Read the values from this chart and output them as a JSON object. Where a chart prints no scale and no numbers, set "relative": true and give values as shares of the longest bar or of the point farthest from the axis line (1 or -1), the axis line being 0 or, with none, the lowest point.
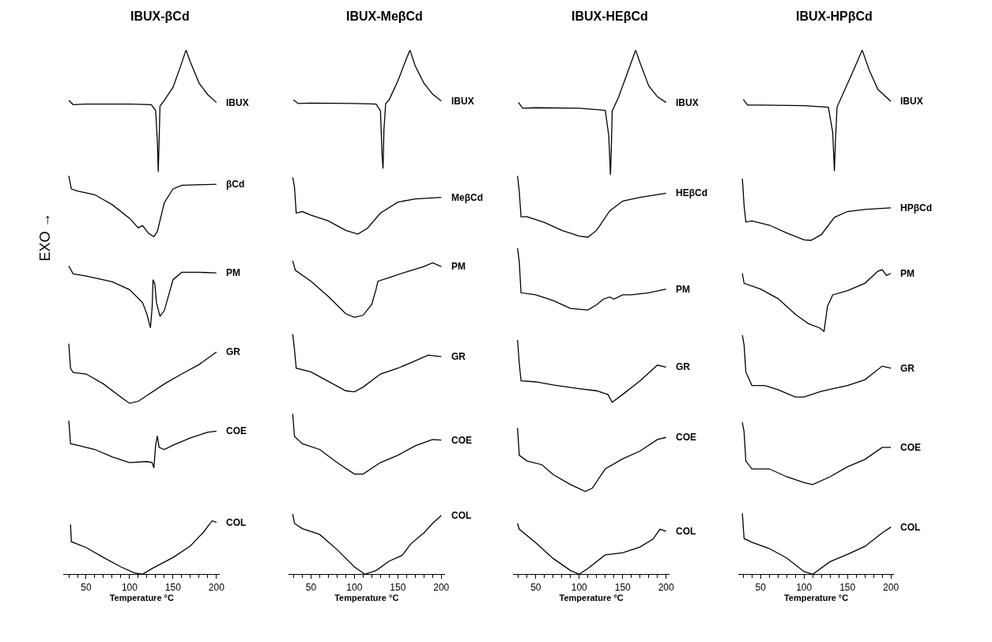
{
  "chart_data": [
    {
      "type": "line",
      "title": "IBUX-βCd",
      "xlabel": "Temperature °C",
      "ylabel": "EXO →",
      "relative": true,
      "xlim": [
        24,
        204
      ],
      "xticks": [
        {
          "value": 30,
          "label": null
        },
        {
          "value": 40,
          "label": null
        },
        50,
        {
          "value": 60,
          "label": null
        },
        {
          "value": 70,
          "label": null
        },
        {
          "value": 80,
          "label": null
        },
        {
          "value": 90,
          "label": null
        },
        100,
        {
          "value": 110,
          "label": null
        },
        {
          "value": 120,
          "label": null
        },
        {
          "value": 130,
          "label": null
        },
        {
          "value": 140,
          "label": null
        },
        150,
        {
          "value": 160,
          "label": null
        },
        {
          "value": 170,
          "label": null
        },
        {
          "value": 180,
          "label": null
        },
        {
          "value": 190,
          "label": null
        },
        200
      ],
      "legend": false,
      "marker": "none",
      "line_style": "solid",
      "series": [
        {
          "name": "IBUX",
          "color": "#000000",
          "x": [
            30,
            35,
            50,
            100,
            125,
            130,
            132,
            133,
            134,
            135,
            140,
            150,
            158,
            165,
            170,
            180,
            190,
            200
          ],
          "values": [
            0.904,
            0.896,
            0.897,
            0.897,
            0.896,
            0.885,
            0.826,
            0.768,
            0.826,
            0.893,
            0.904,
            0.929,
            0.966,
            1.0,
            0.977,
            0.937,
            0.915,
            0.9
          ]
        },
        {
          "name": "βCd",
          "color": "#000000",
          "x": [
            30,
            33,
            40,
            60,
            80,
            100,
            110,
            115,
            122,
            128,
            132,
            140,
            150,
            160,
            180,
            200
          ],
          "values": [
            0.76,
            0.735,
            0.731,
            0.724,
            0.705,
            0.679,
            0.661,
            0.665,
            0.65,
            0.644,
            0.654,
            0.709,
            0.735,
            0.742,
            0.743,
            0.744
          ]
        },
        {
          "name": "PM",
          "color": "#000000",
          "x": [
            30,
            35,
            50,
            80,
            100,
            115,
            120,
            124,
            126,
            127,
            129,
            131,
            135,
            140,
            150,
            160,
            180,
            200
          ],
          "values": [
            0.588,
            0.573,
            0.569,
            0.558,
            0.543,
            0.518,
            0.496,
            0.47,
            0.51,
            0.562,
            0.554,
            0.518,
            0.492,
            0.503,
            0.562,
            0.576,
            0.576,
            0.575
          ]
        },
        {
          "name": "GR",
          "color": "#000000",
          "x": [
            30,
            32,
            35,
            50,
            70,
            90,
            100,
            110,
            120,
            140,
            160,
            180,
            200
          ],
          "values": [
            0.44,
            0.393,
            0.385,
            0.382,
            0.363,
            0.338,
            0.326,
            0.33,
            0.341,
            0.363,
            0.382,
            0.4,
            0.424
          ]
        },
        {
          "name": "COE",
          "color": "#000000",
          "x": [
            30,
            32,
            40,
            60,
            80,
            100,
            120,
            126,
            128,
            130,
            132,
            134,
            140,
            150,
            170,
            190,
            200
          ],
          "values": [
            0.293,
            0.249,
            0.246,
            0.238,
            0.224,
            0.213,
            0.215,
            0.213,
            0.203,
            0.246,
            0.264,
            0.242,
            0.238,
            0.246,
            0.26,
            0.271,
            0.273
          ]
        },
        {
          "name": "COL",
          "color": "#000000",
          "x": [
            32,
            33,
            50,
            70,
            90,
            105,
            115,
            125,
            150,
            170,
            185,
            195,
            200
          ],
          "values": [
            0.095,
            0.062,
            0.051,
            0.032,
            0.014,
            0.003,
            0.0,
            0.01,
            0.032,
            0.054,
            0.08,
            0.102,
            0.099
          ]
        }
      ]
    },
    {
      "type": "line",
      "title": "IBUX-MeβCd",
      "xlabel": "Temperature °C",
      "relative": true,
      "xlim": [
        24,
        204
      ],
      "xticks": [
        {
          "value": 30,
          "label": null
        },
        {
          "value": 40,
          "label": null
        },
        50,
        {
          "value": 60,
          "label": null
        },
        {
          "value": 70,
          "label": null
        },
        {
          "value": 80,
          "label": null
        },
        {
          "value": 90,
          "label": null
        },
        100,
        {
          "value": 110,
          "label": null
        },
        {
          "value": 120,
          "label": null
        },
        {
          "value": 130,
          "label": null
        },
        {
          "value": 140,
          "label": null
        },
        150,
        {
          "value": 160,
          "label": null
        },
        {
          "value": 170,
          "label": null
        },
        {
          "value": 180,
          "label": null
        },
        {
          "value": 190,
          "label": null
        },
        200
      ],
      "legend": false,
      "marker": "none",
      "line_style": "solid",
      "series": [
        {
          "name": "IBUX",
          "color": "#000000",
          "x": [
            30,
            35,
            50,
            100,
            125,
            130,
            132,
            133,
            134,
            136,
            140,
            150,
            160,
            164,
            170,
            180,
            190,
            200
          ],
          "values": [
            0.905,
            0.898,
            0.899,
            0.898,
            0.897,
            0.884,
            0.796,
            0.774,
            0.847,
            0.898,
            0.905,
            0.941,
            0.984,
            1.0,
            0.97,
            0.937,
            0.916,
            0.903
          ]
        },
        {
          "name": "MeβCd",
          "color": "#000000",
          "x": [
            29,
            31,
            33,
            40,
            50,
            70,
            90,
            104,
            115,
            130,
            150,
            170,
            200
          ],
          "values": [
            0.757,
            0.739,
            0.689,
            0.692,
            0.685,
            0.674,
            0.656,
            0.649,
            0.66,
            0.689,
            0.71,
            0.716,
            0.719
          ]
        },
        {
          "name": "PM",
          "color": "#000000",
          "x": [
            29,
            32,
            50,
            70,
            90,
            100,
            110,
            120,
            125,
            127,
            140,
            160,
            180,
            190,
            200
          ],
          "values": [
            0.598,
            0.58,
            0.559,
            0.53,
            0.497,
            0.49,
            0.494,
            0.515,
            0.544,
            0.559,
            0.566,
            0.577,
            0.587,
            0.594,
            0.587
          ]
        },
        {
          "name": "GR",
          "color": "#000000",
          "x": [
            29,
            31,
            33,
            50,
            70,
            90,
            100,
            110,
            130,
            150,
            170,
            185,
            200
          ],
          "values": [
            0.458,
            0.429,
            0.393,
            0.386,
            0.368,
            0.35,
            0.348,
            0.357,
            0.382,
            0.393,
            0.407,
            0.418,
            0.415
          ]
        },
        {
          "name": "COE",
          "color": "#000000",
          "x": [
            29,
            31,
            40,
            60,
            80,
            100,
            110,
            130,
            150,
            170,
            190,
            200
          ],
          "values": [
            0.306,
            0.263,
            0.249,
            0.238,
            0.213,
            0.191,
            0.191,
            0.213,
            0.227,
            0.245,
            0.257,
            0.256
          ]
        },
        {
          "name": "COL",
          "color": "#000000",
          "x": [
            29,
            31,
            40,
            60,
            80,
            100,
            112,
            125,
            140,
            155,
            165,
            180,
            190,
            200
          ],
          "values": [
            0.115,
            0.097,
            0.087,
            0.076,
            0.047,
            0.014,
            0.0,
            0.007,
            0.025,
            0.036,
            0.058,
            0.079,
            0.097,
            0.112
          ]
        }
      ]
    },
    {
      "type": "line",
      "title": "IBUX-HEβCd",
      "xlabel": "Temperature °C",
      "relative": true,
      "xlim": [
        24,
        204
      ],
      "xticks": [
        {
          "value": 30,
          "label": null
        },
        {
          "value": 40,
          "label": null
        },
        50,
        {
          "value": 60,
          "label": null
        },
        {
          "value": 70,
          "label": null
        },
        {
          "value": 80,
          "label": null
        },
        {
          "value": 90,
          "label": null
        },
        100,
        {
          "value": 110,
          "label": null
        },
        {
          "value": 120,
          "label": null
        },
        {
          "value": 130,
          "label": null
        },
        {
          "value": 140,
          "label": null
        },
        150,
        {
          "value": 160,
          "label": null
        },
        {
          "value": 170,
          "label": null
        },
        {
          "value": 180,
          "label": null
        },
        {
          "value": 190,
          "label": null
        },
        200
      ],
      "legend": false,
      "marker": "none",
      "line_style": "solid",
      "series": [
        {
          "name": "IBUX",
          "color": "#000000",
          "x": [
            30,
            35,
            50,
            100,
            130,
            134,
            136,
            137,
            138,
            145,
            155,
            165,
            170,
            180,
            190,
            200
          ],
          "values": [
            0.9,
            0.889,
            0.89,
            0.889,
            0.885,
            0.837,
            0.762,
            0.815,
            0.884,
            0.909,
            0.954,
            1.0,
            0.976,
            0.932,
            0.911,
            0.9
          ]
        },
        {
          "name": "HEβCd",
          "color": "#000000",
          "x": [
            29,
            31,
            33,
            40,
            60,
            80,
            100,
            110,
            120,
            135,
            150,
            170,
            200
          ],
          "values": [
            0.76,
            0.73,
            0.682,
            0.682,
            0.671,
            0.656,
            0.645,
            0.643,
            0.656,
            0.693,
            0.712,
            0.719,
            0.727
          ]
        },
        {
          "name": "PM",
          "color": "#000000",
          "x": [
            29,
            31,
            33,
            50,
            70,
            90,
            110,
            120,
            128,
            135,
            140,
            150,
            160,
            180,
            200
          ],
          "values": [
            0.622,
            0.596,
            0.537,
            0.533,
            0.522,
            0.507,
            0.504,
            0.514,
            0.525,
            0.529,
            0.525,
            0.533,
            0.533,
            0.537,
            0.544
          ]
        },
        {
          "name": "GR",
          "color": "#000000",
          "x": [
            29,
            31,
            33,
            50,
            70,
            100,
            120,
            133,
            138,
            150,
            170,
            190,
            200
          ],
          "values": [
            0.447,
            0.402,
            0.369,
            0.367,
            0.361,
            0.354,
            0.35,
            0.343,
            0.328,
            0.343,
            0.369,
            0.399,
            0.395
          ]
        },
        {
          "name": "COE",
          "color": "#000000",
          "x": [
            29,
            31,
            40,
            57,
            70,
            90,
            107,
            115,
            130,
            150,
            170,
            190,
            200
          ],
          "values": [
            0.279,
            0.227,
            0.216,
            0.209,
            0.19,
            0.171,
            0.158,
            0.164,
            0.201,
            0.22,
            0.235,
            0.257,
            0.261
          ]
        },
        {
          "name": "COL",
          "color": "#000000",
          "x": [
            29,
            31,
            50,
            70,
            90,
            100,
            110,
            130,
            150,
            170,
            185,
            193,
            200
          ],
          "values": [
            0.097,
            0.086,
            0.06,
            0.03,
            0.007,
            0.0,
            0.011,
            0.037,
            0.041,
            0.052,
            0.067,
            0.086,
            0.082
          ]
        }
      ]
    },
    {
      "type": "line",
      "title": "IBUX-HPβCd",
      "xlabel": "Temperature °C",
      "relative": true,
      "xlim": [
        24,
        204
      ],
      "xticks": [
        {
          "value": 30,
          "label": null
        },
        {
          "value": 40,
          "label": null
        },
        50,
        {
          "value": 60,
          "label": null
        },
        {
          "value": 70,
          "label": null
        },
        {
          "value": 80,
          "label": null
        },
        {
          "value": 90,
          "label": null
        },
        100,
        {
          "value": 110,
          "label": null
        },
        {
          "value": 120,
          "label": null
        },
        {
          "value": 130,
          "label": null
        },
        {
          "value": 140,
          "label": null
        },
        150,
        {
          "value": 160,
          "label": null
        },
        {
          "value": 170,
          "label": null
        },
        {
          "value": 180,
          "label": null
        },
        {
          "value": 190,
          "label": null
        },
        200
      ],
      "legend": false,
      "marker": "none",
      "line_style": "solid",
      "series": [
        {
          "name": "IBUX",
          "color": "#000000",
          "x": [
            30,
            35,
            50,
            100,
            128,
            133,
            135,
            136,
            138,
            145,
            155,
            167,
            175,
            185,
            200
          ],
          "values": [
            0.906,
            0.895,
            0.895,
            0.894,
            0.891,
            0.843,
            0.769,
            0.821,
            0.891,
            0.917,
            0.954,
            1.0,
            0.962,
            0.925,
            0.902
          ]
        },
        {
          "name": "HPβCd",
          "color": "#000000",
          "x": [
            29,
            31,
            33,
            40,
            60,
            80,
            100,
            108,
            120,
            135,
            150,
            170,
            200
          ],
          "values": [
            0.755,
            0.703,
            0.672,
            0.674,
            0.666,
            0.651,
            0.638,
            0.637,
            0.648,
            0.681,
            0.692,
            0.696,
            0.699
          ]
        },
        {
          "name": "PM",
          "color": "#000000",
          "x": [
            29,
            31,
            50,
            70,
            90,
            105,
            118,
            123,
            127,
            133,
            150,
            170,
            185,
            190,
            195,
            200
          ],
          "values": [
            0.574,
            0.555,
            0.544,
            0.526,
            0.496,
            0.478,
            0.47,
            0.463,
            0.511,
            0.533,
            0.541,
            0.555,
            0.578,
            0.581,
            0.57,
            0.574
          ]
        },
        {
          "name": "GR",
          "color": "#000000",
          "x": [
            29,
            31,
            33,
            40,
            55,
            70,
            90,
            100,
            120,
            150,
            170,
            190,
            200
          ],
          "values": [
            0.456,
            0.437,
            0.386,
            0.36,
            0.36,
            0.352,
            0.338,
            0.338,
            0.349,
            0.36,
            0.371,
            0.397,
            0.393
          ]
        },
        {
          "name": "COE",
          "color": "#000000",
          "x": [
            29,
            31,
            33,
            40,
            60,
            80,
            100,
            110,
            130,
            150,
            170,
            190,
            200
          ],
          "values": [
            0.29,
            0.271,
            0.216,
            0.201,
            0.201,
            0.186,
            0.175,
            0.171,
            0.186,
            0.205,
            0.219,
            0.242,
            0.242
          ]
        },
        {
          "name": "COL",
          "color": "#000000",
          "x": [
            29,
            31,
            40,
            60,
            80,
            100,
            110,
            130,
            150,
            170,
            190,
            200
          ],
          "values": [
            0.116,
            0.068,
            0.061,
            0.049,
            0.031,
            0.005,
            0.0,
            0.024,
            0.038,
            0.053,
            0.079,
            0.09
          ]
        }
      ]
    }
  ]
}
